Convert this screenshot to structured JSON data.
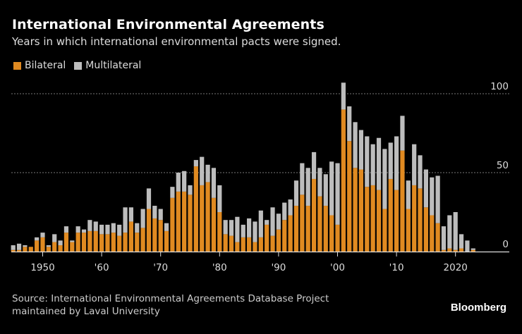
{
  "header": {
    "title": "International Environmental Agreements",
    "subtitle": "Years in which international environmental pacts were signed."
  },
  "legend": [
    {
      "label": "Bilateral",
      "color": "#e08a21"
    },
    {
      "label": "Multilateral",
      "color": "#bdbdbd"
    }
  ],
  "footer": {
    "source_line1": "Source: International Environmental Agreements Database Project",
    "source_line2": "maintained by Laval University",
    "brand": "Bloomberg"
  },
  "chart_data": {
    "type": "bar",
    "stacked": true,
    "title": "International Environmental Agreements",
    "subtitle": "Years in which international environmental pacts were signed.",
    "xlabel": "",
    "ylabel": "",
    "ylim": [
      0,
      110
    ],
    "yticks": [
      0,
      50,
      100
    ],
    "ytick_labels": [
      "0",
      "50",
      "100"
    ],
    "grid": true,
    "legend_position": "top-left",
    "xticks": [
      1950,
      1960,
      1970,
      1980,
      1990,
      2000,
      2010,
      2020
    ],
    "xtick_labels": [
      "1950",
      "'60",
      "'70",
      "'80",
      "'90",
      "'00",
      "'10",
      "2020"
    ],
    "x": [
      1945,
      1946,
      1947,
      1948,
      1949,
      1950,
      1951,
      1952,
      1953,
      1954,
      1955,
      1956,
      1957,
      1958,
      1959,
      1960,
      1961,
      1962,
      1963,
      1964,
      1965,
      1966,
      1967,
      1968,
      1969,
      1970,
      1971,
      1972,
      1973,
      1974,
      1975,
      1976,
      1977,
      1978,
      1979,
      1980,
      1981,
      1982,
      1983,
      1984,
      1985,
      1986,
      1987,
      1988,
      1989,
      1990,
      1991,
      1992,
      1993,
      1994,
      1995,
      1996,
      1997,
      1998,
      1999,
      2000,
      2001,
      2002,
      2003,
      2004,
      2005,
      2006,
      2007,
      2008,
      2009,
      2010,
      2011,
      2012,
      2013,
      2014,
      2015,
      2016,
      2017,
      2018,
      2019,
      2020,
      2021,
      2022,
      2023
    ],
    "series": [
      {
        "name": "Bilateral",
        "color": "#e08a21",
        "values": [
          1,
          1,
          3,
          3,
          7,
          9,
          3,
          6,
          4,
          12,
          6,
          12,
          12,
          13,
          13,
          11,
          11,
          12,
          10,
          12,
          19,
          12,
          15,
          27,
          21,
          20,
          13,
          34,
          38,
          38,
          36,
          54,
          42,
          44,
          34,
          25,
          11,
          10,
          6,
          9,
          9,
          6,
          9,
          17,
          10,
          14,
          20,
          23,
          29,
          36,
          29,
          46,
          35,
          29,
          23,
          17,
          90,
          70,
          53,
          52,
          41,
          42,
          39,
          27,
          46,
          39,
          64,
          27,
          42,
          40,
          28,
          23,
          18,
          1,
          2,
          1,
          2,
          0,
          1
        ],
        "total": [
          4,
          5,
          4,
          3,
          9,
          12,
          4,
          11,
          7,
          16,
          7,
          16,
          14,
          20,
          19,
          17,
          17,
          18,
          17,
          28,
          28,
          18,
          27,
          40,
          29,
          27,
          18,
          41,
          50,
          51,
          42,
          58,
          60,
          55,
          53,
          42,
          20,
          20,
          22,
          17,
          21,
          19,
          26,
          20,
          28,
          24,
          31,
          33,
          45,
          56,
          53,
          63,
          53,
          49,
          57,
          56,
          107,
          92,
          82,
          77,
          73,
          68,
          72,
          65,
          69,
          73,
          86,
          45,
          68,
          61,
          52,
          47,
          48,
          16,
          23,
          25,
          11,
          7,
          2
        ]
      },
      {
        "name": "Multilateral",
        "color": "#bdbdbd",
        "values": [
          3,
          4,
          1,
          0,
          2,
          3,
          1,
          5,
          3,
          4,
          1,
          4,
          2,
          7,
          6,
          6,
          6,
          6,
          7,
          16,
          9,
          6,
          12,
          13,
          8,
          7,
          5,
          7,
          12,
          13,
          6,
          4,
          18,
          11,
          19,
          17,
          9,
          10,
          16,
          8,
          12,
          13,
          17,
          3,
          18,
          10,
          11,
          10,
          16,
          20,
          24,
          17,
          18,
          20,
          34,
          39,
          17,
          22,
          29,
          25,
          32,
          26,
          33,
          38,
          23,
          34,
          22,
          18,
          26,
          21,
          24,
          24,
          30,
          15,
          21,
          24,
          9,
          7,
          1
        ]
      }
    ]
  }
}
